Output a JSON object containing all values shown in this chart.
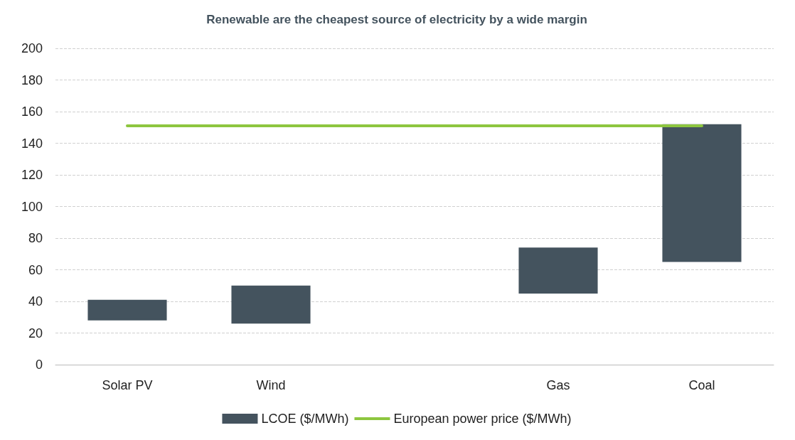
{
  "chart_data": {
    "type": "bar",
    "title": "Renewable are the cheapest source of electricity by a wide margin",
    "categories": [
      "Solar PV",
      "Wind",
      null,
      "Gas",
      "Coal"
    ],
    "series": [
      {
        "name": "LCOE ($/MWh)",
        "color": "#44535e",
        "base": [
          28,
          26,
          null,
          45,
          65
        ],
        "values": [
          13,
          24,
          null,
          29,
          87
        ]
      },
      {
        "name": "European power price ($/MWh)",
        "type": "line",
        "color": "#8dc63f",
        "values": [
          151,
          151,
          151,
          151,
          151
        ]
      }
    ],
    "ylim": [
      0,
      200
    ],
    "yticks": [
      0,
      20,
      40,
      60,
      80,
      100,
      120,
      140,
      160,
      180,
      200
    ],
    "grid": "y",
    "legend": "bottom",
    "marker": "none",
    "line_style": "solid"
  }
}
